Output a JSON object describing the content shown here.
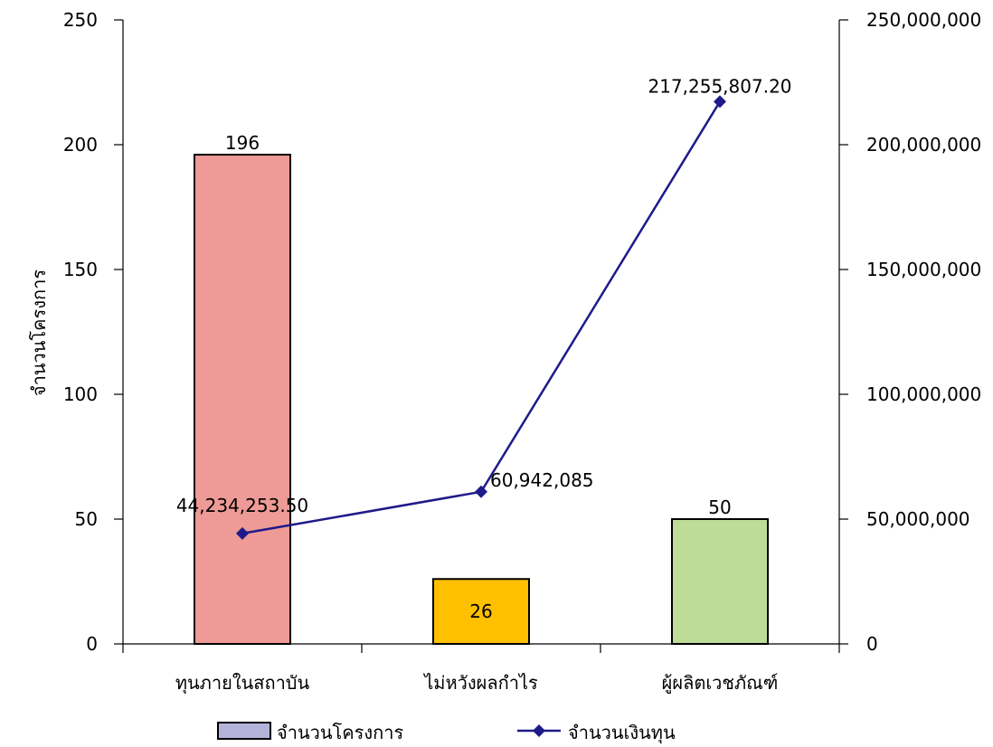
{
  "chart_data": {
    "type": "bar",
    "categories": [
      "ทุนภายในสถาบัน",
      "ไม่หวังผลกำไร",
      "ผู้ผลิตเวชภัณฑ์"
    ],
    "series": [
      {
        "name": "จำนวนโครงการ",
        "type": "bar",
        "axis": "left",
        "values": [
          196,
          26,
          50
        ],
        "data_labels": [
          "196",
          "26",
          "50"
        ],
        "colors": [
          "#ee9a96",
          "#ffc000",
          "#bddc98"
        ]
      },
      {
        "name": "จำนวนเงินทุน",
        "type": "line",
        "axis": "right",
        "values": [
          44234253.5,
          60942085,
          217255807.2
        ],
        "data_labels": [
          "44,234,253.50",
          "60,942,085",
          "217,255,807.20"
        ],
        "color": "#1f1a8a"
      }
    ],
    "ylabel": "จำนวนโครงการ",
    "ylim": [
      0,
      250
    ],
    "yticks": [
      "0",
      "50",
      "100",
      "150",
      "200",
      "250"
    ],
    "y2lim": [
      0,
      250000000
    ],
    "y2ticks": [
      "0",
      "50,000,000",
      "100,000,000",
      "150,000,000",
      "200,000,000",
      "250,000,000"
    ],
    "legend_position": "bottom",
    "grid": false
  }
}
